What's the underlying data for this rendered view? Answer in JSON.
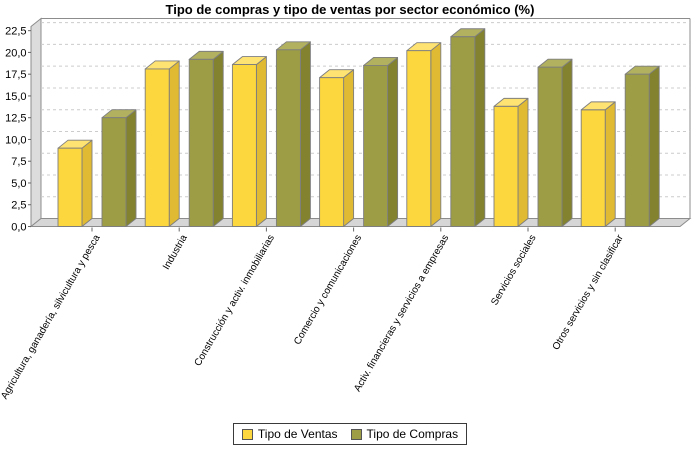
{
  "chart_data": {
    "type": "bar",
    "style": "3d-bars-jfreechart",
    "title": "Tipo de compras y tipo de ventas por sector económico (%)",
    "categories": [
      "Agricultura, ganadería, silvicultura y pesca",
      "Industria",
      "Construcción y activ. inmobiliarias",
      "Comercio y comunicaciones",
      "Activ. financieras y servicios a empresas",
      "Servicios sociales",
      "Otros servicios y sin clasificar"
    ],
    "series": [
      {
        "name": "Tipo de Ventas",
        "color": "#FDD73E",
        "values": [
          9.0,
          18.1,
          18.6,
          17.1,
          20.2,
          13.8,
          13.4
        ]
      },
      {
        "name": "Tipo de Compras",
        "color": "#9D9D45",
        "values": [
          12.5,
          19.2,
          20.3,
          18.5,
          21.8,
          18.3,
          17.5
        ]
      }
    ],
    "xlabel": "",
    "ylabel": "",
    "ylim": [
      0,
      22.5
    ],
    "ytick_step": 2.5,
    "ytick_labels": [
      "0,0",
      "2,5",
      "5,0",
      "7,5",
      "10,0",
      "12,5",
      "15,0",
      "17,5",
      "20,0",
      "22,5"
    ],
    "grid": "horizontal-dashed",
    "legend_position": "bottom",
    "category_label_rotation_deg": -60
  }
}
